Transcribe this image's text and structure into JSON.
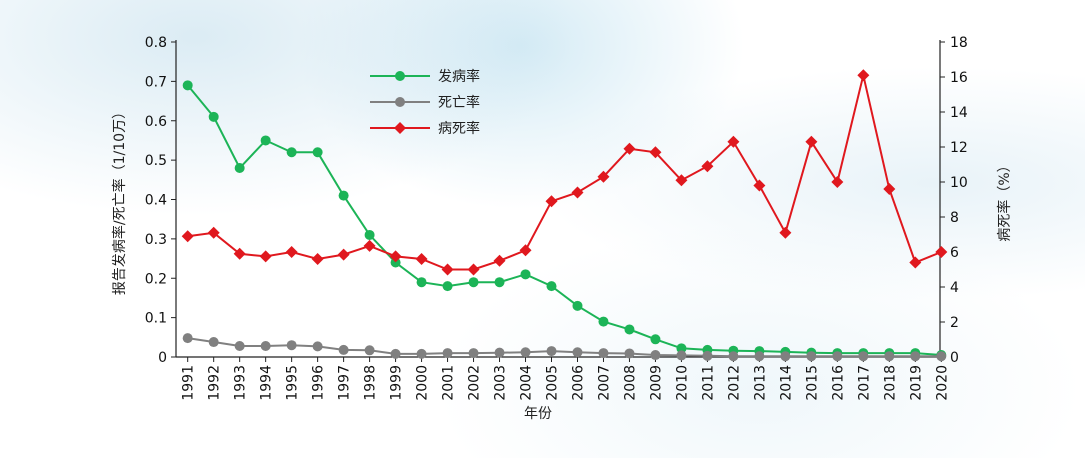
{
  "chart_data": {
    "type": "line",
    "xlabel": "年份",
    "ylabel_left": "报告发病率/死亡率（1/10万）",
    "ylabel_right": "病死率（%）",
    "ylim_left": [
      0,
      0.8
    ],
    "ylim_right": [
      0,
      18
    ],
    "yticks_left": [
      "0",
      "0.1",
      "0.2",
      "0.3",
      "0.4",
      "0.5",
      "0.6",
      "0.7",
      "0.8"
    ],
    "yticks_right": [
      "0",
      "2",
      "4",
      "6",
      "8",
      "10",
      "12",
      "14",
      "16",
      "18"
    ],
    "categories": [
      "1991",
      "1992",
      "1993",
      "1994",
      "1995",
      "1996",
      "1997",
      "1998",
      "1999",
      "2000",
      "2001",
      "2002",
      "2003",
      "2004",
      "2005",
      "2006",
      "2007",
      "2008",
      "2009",
      "2010",
      "2011",
      "2012",
      "2013",
      "2014",
      "2015",
      "2016",
      "2017",
      "2018",
      "2019",
      "2020"
    ],
    "legend_position": "top-center",
    "grid": false,
    "series": [
      {
        "name": "发病率",
        "axis": "left",
        "color": "#1cb457",
        "marker": "circle",
        "values": [
          0.69,
          0.61,
          0.48,
          0.55,
          0.52,
          0.52,
          0.41,
          0.31,
          0.24,
          0.19,
          0.18,
          0.19,
          0.19,
          0.21,
          0.18,
          0.13,
          0.09,
          0.07,
          0.045,
          0.022,
          0.018,
          0.016,
          0.015,
          0.013,
          0.011,
          0.01,
          0.01,
          0.01,
          0.01,
          0.005
        ]
      },
      {
        "name": "死亡率",
        "axis": "left",
        "color": "#808080",
        "marker": "circle",
        "values": [
          0.048,
          0.038,
          0.028,
          0.028,
          0.03,
          0.027,
          0.018,
          0.017,
          0.008,
          0.008,
          0.01,
          0.01,
          0.011,
          0.012,
          0.015,
          0.012,
          0.01,
          0.009,
          0.005,
          0.004,
          0.003,
          0.002,
          0.002,
          0.002,
          0.002,
          0.002,
          0.002,
          0.002,
          0.002,
          0.002
        ]
      },
      {
        "name": "病死率",
        "axis": "right",
        "color": "#e0181e",
        "marker": "diamond",
        "values": [
          6.9,
          7.1,
          5.9,
          5.75,
          6.0,
          5.6,
          5.85,
          6.35,
          5.75,
          5.6,
          5.0,
          5.0,
          5.5,
          6.1,
          8.9,
          9.4,
          10.3,
          11.9,
          11.7,
          10.1,
          10.9,
          12.3,
          9.8,
          7.1,
          12.3,
          10.0,
          16.1,
          9.6,
          5.4,
          6.0
        ]
      }
    ]
  }
}
